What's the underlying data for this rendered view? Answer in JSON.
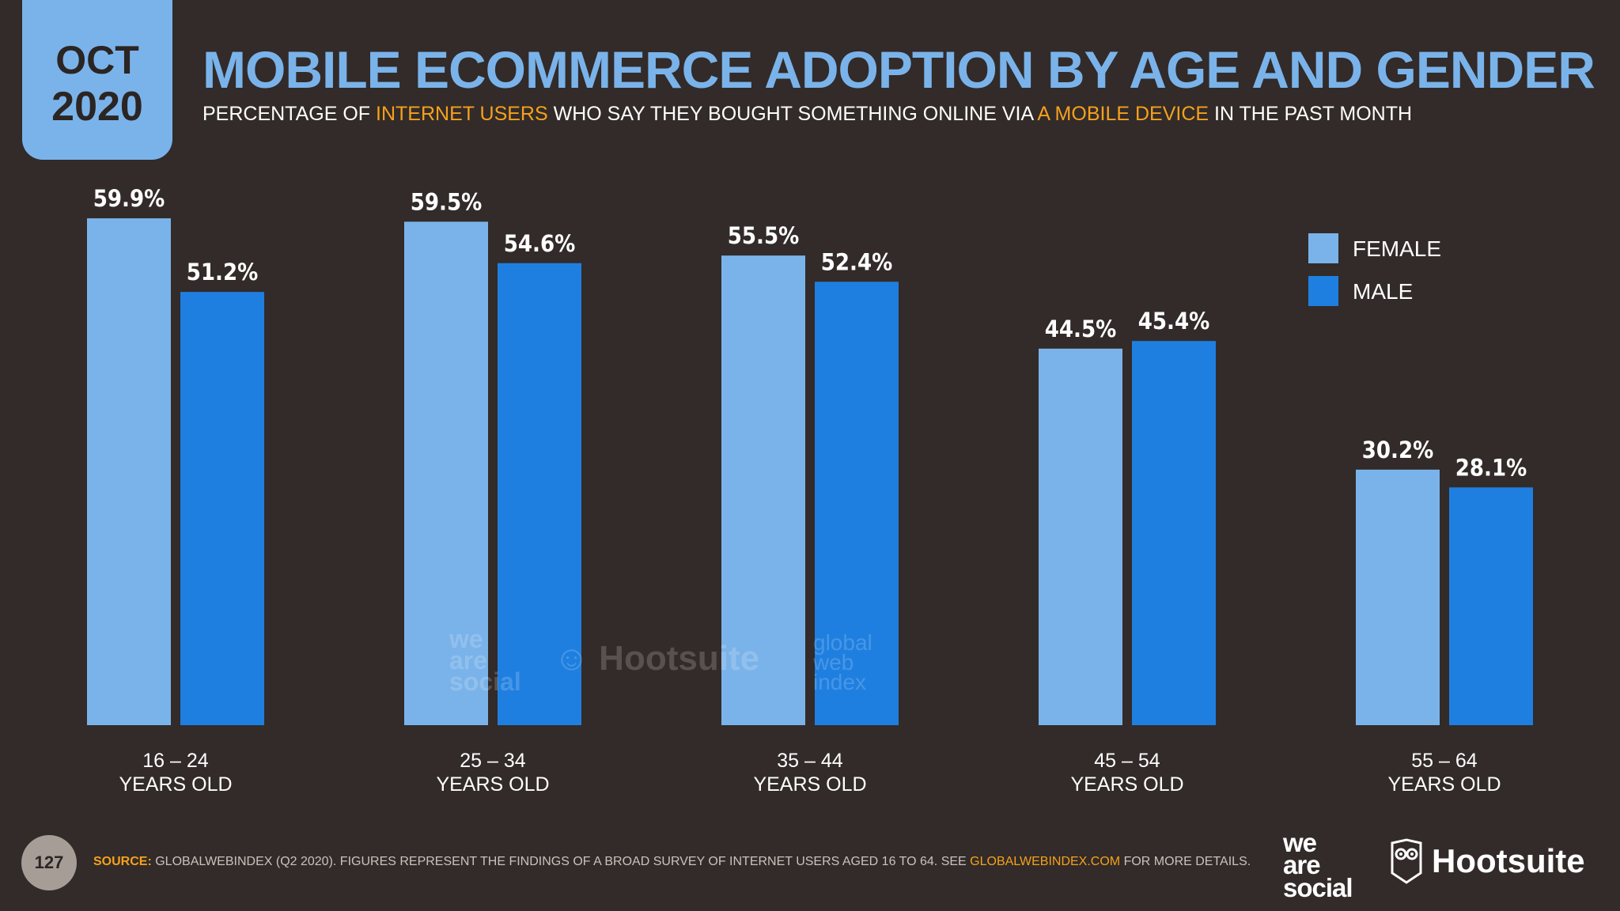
{
  "header": {
    "month": "OCT",
    "year": "2020",
    "title": "MOBILE ECOMMERCE ADOPTION BY AGE AND GENDER",
    "subtitle_parts": [
      "PERCENTAGE OF ",
      "INTERNET USERS",
      " WHO SAY THEY BOUGHT SOMETHING ONLINE VIA ",
      "A MOBILE DEVICE",
      " IN THE PAST MONTH"
    ]
  },
  "chart_data": {
    "type": "bar",
    "title": "MOBILE ECOMMERCE ADOPTION BY AGE AND GENDER",
    "xlabel": "",
    "ylabel": "",
    "ylim": [
      0,
      100
    ],
    "grid": false,
    "legend_position": "top-right",
    "categories": [
      [
        "16 – 24",
        "YEARS OLD"
      ],
      [
        "25 – 34",
        "YEARS OLD"
      ],
      [
        "35 – 44",
        "YEARS OLD"
      ],
      [
        "45 – 54",
        "YEARS OLD"
      ],
      [
        "55 – 64",
        "YEARS OLD"
      ]
    ],
    "series": [
      {
        "name": "FEMALE",
        "color": "#7ab3ea",
        "values": [
          59.9,
          59.5,
          55.5,
          44.5,
          30.2
        ],
        "labels": [
          "59.9%",
          "59.5%",
          "55.5%",
          "44.5%",
          "30.2%"
        ]
      },
      {
        "name": "MALE",
        "color": "#1f7fe0",
        "values": [
          51.2,
          54.6,
          52.4,
          45.4,
          28.1
        ],
        "labels": [
          "51.2%",
          "54.6%",
          "52.4%",
          "45.4%",
          "28.1%"
        ]
      }
    ]
  },
  "footer": {
    "page_number": "127",
    "source_label": "SOURCE:",
    "source_text": " GLOBALWEBINDEX (Q2 2020). FIGURES REPRESENT THE FINDINGS OF A BROAD SURVEY OF INTERNET USERS AGED 16 TO 64. SEE ",
    "source_link": "GLOBALWEBINDEX.COM",
    "source_end": " FOR MORE DETAILS.",
    "logo_was": [
      "we",
      "are",
      "social"
    ],
    "logo_hootsuite": "Hootsuite"
  },
  "watermarks": {
    "was": [
      "we",
      "are",
      "social"
    ],
    "hootsuite": "Hootsuite",
    "gwi": [
      "global",
      "web",
      "index"
    ]
  }
}
